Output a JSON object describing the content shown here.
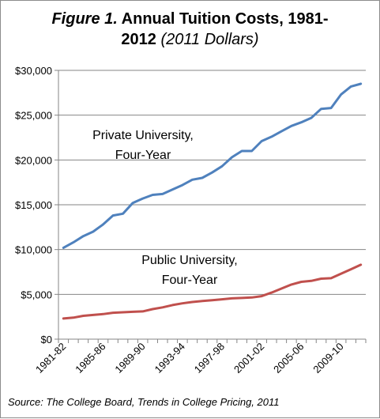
{
  "figure_label": "Figure 1.",
  "title_line1": "Annual Tuition Costs, 1981-",
  "title_line2": "2012",
  "title_units": "(2011 Dollars)",
  "source": "Source: The College Board, Trends in College Pricing, 2011",
  "chart_data": {
    "type": "line",
    "title": "Figure 1. Annual Tuition Costs, 1981-2012 (2011 Dollars)",
    "xlabel": "",
    "ylabel": "",
    "ylim": [
      0,
      30000
    ],
    "yticks": [
      "$0",
      "$5,000",
      "$10,000",
      "$15,000",
      "$20,000",
      "$25,000",
      "$30,000"
    ],
    "ytick_values": [
      0,
      5000,
      10000,
      15000,
      20000,
      25000,
      30000
    ],
    "grid": "horizontal",
    "categories": [
      "1981-82",
      "1982-83",
      "1983-84",
      "1984-85",
      "1985-86",
      "1986-87",
      "1987-88",
      "1988-89",
      "1989-90",
      "1990-91",
      "1991-92",
      "1992-93",
      "1993-94",
      "1994-95",
      "1995-96",
      "1996-97",
      "1997-98",
      "1998-99",
      "1999-00",
      "2000-01",
      "2001-02",
      "2002-03",
      "2003-04",
      "2004-05",
      "2005-06",
      "2006-07",
      "2007-08",
      "2008-09",
      "2009-10",
      "2010-11",
      "2011-12"
    ],
    "tick_labels": [
      "1981-82",
      "1985-86",
      "1989-90",
      "1993-94",
      "1997-98",
      "2001-02",
      "2005-06",
      "2009-10"
    ],
    "series": [
      {
        "name": "Private University, Four-Year",
        "label_line1": "Private University,",
        "label_line2": "Four-Year",
        "color": "#4f81bd",
        "values": [
          10200,
          10800,
          11500,
          12000,
          12800,
          13800,
          14000,
          15200,
          15700,
          16100,
          16200,
          16700,
          17200,
          17800,
          18000,
          18600,
          19300,
          20300,
          21000,
          21000,
          22100,
          22600,
          23200,
          23800,
          24200,
          24700,
          25700,
          25800,
          27300,
          28200,
          28500
        ]
      },
      {
        "name": "Public University, Four-Year",
        "label_line1": "Public University,",
        "label_line2": "Four-Year",
        "color": "#c0504d",
        "values": [
          2300,
          2400,
          2600,
          2700,
          2800,
          2950,
          3000,
          3050,
          3100,
          3350,
          3550,
          3800,
          4000,
          4150,
          4250,
          4350,
          4450,
          4550,
          4600,
          4650,
          4800,
          5200,
          5650,
          6100,
          6400,
          6500,
          6750,
          6800,
          7300,
          7800,
          8300
        ]
      }
    ]
  }
}
